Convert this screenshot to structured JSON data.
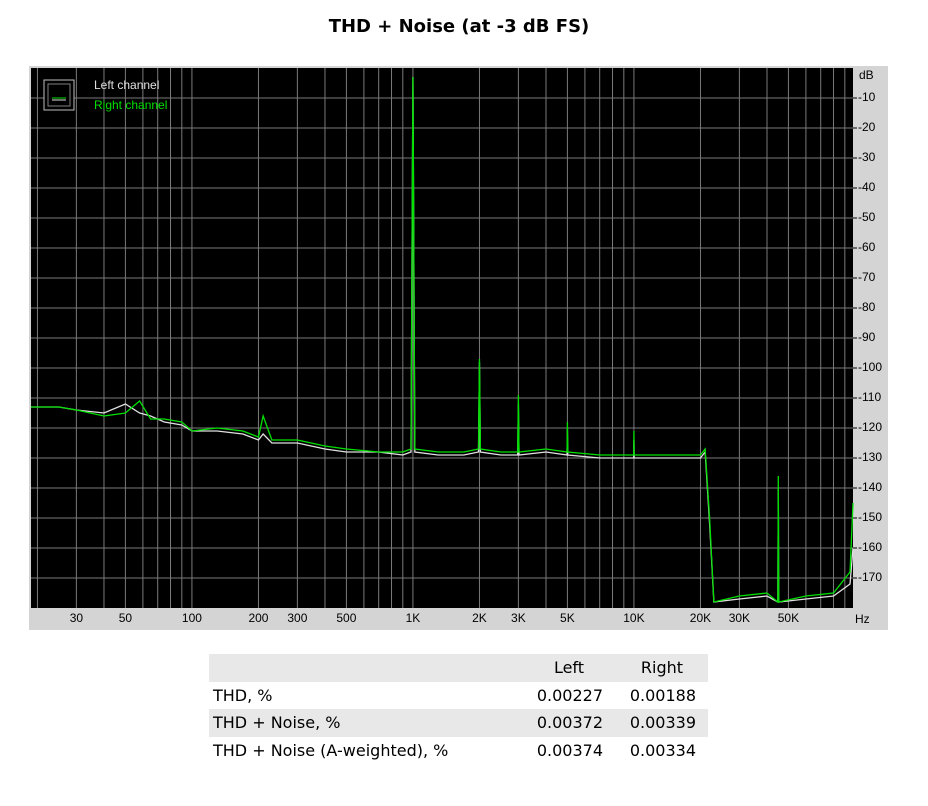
{
  "chart_data": {
    "type": "line",
    "title": "THD + Noise (at -3 dB FS)",
    "x_unit": "Hz",
    "y_unit": "dB",
    "xscale": "log",
    "grid": true,
    "legend": "top-left",
    "x": [
      18.7,
      25,
      30,
      40,
      50,
      58,
      65,
      75,
      90,
      100,
      130,
      170,
      200,
      210,
      230,
      300,
      400,
      500,
      700,
      900,
      980,
      1000,
      1020,
      1300,
      1700,
      1980,
      2000,
      2020,
      2500,
      2980,
      3000,
      3020,
      4000,
      4980,
      5000,
      5020,
      7000,
      9980,
      10000,
      10020,
      15000,
      20000,
      21000,
      22000,
      23000,
      30000,
      40000,
      44800,
      45000,
      45200,
      60000,
      80000,
      95000,
      98000
    ],
    "series": [
      {
        "name": "Left channel",
        "color": "#e0e0e0",
        "values": [
          -113,
          -113,
          -114,
          -115,
          -112,
          -115,
          -116,
          -118,
          -119,
          -121,
          -121,
          -122,
          -124,
          -122,
          -125,
          -125,
          -127,
          -128,
          -128,
          -129,
          -128,
          -3,
          -128,
          -129,
          -129,
          -128,
          -98,
          -128,
          -129,
          -129,
          -112,
          -129,
          -128,
          -129,
          -120,
          -129,
          -130,
          -130,
          -124,
          -130,
          -130,
          -130,
          -128,
          -152,
          -178,
          -177,
          -176,
          -178,
          -140,
          -178,
          -177,
          -176,
          -172,
          -160
        ]
      },
      {
        "name": "Right channel",
        "color": "#00e000",
        "values": [
          -113,
          -113,
          -114,
          -116,
          -115,
          -111,
          -117,
          -117,
          -118,
          -121,
          -120,
          -121,
          -123,
          -116,
          -124,
          -124,
          -126,
          -127,
          -128,
          -128,
          -127,
          -3,
          -127,
          -128,
          -128,
          -127,
          -97,
          -127,
          -128,
          -128,
          -109,
          -128,
          -127,
          -128,
          -118,
          -128,
          -129,
          -129,
          -121,
          -129,
          -129,
          -129,
          -127,
          -150,
          -178,
          -176,
          -175,
          -178,
          -136,
          -178,
          -176,
          -175,
          -168,
          -145
        ]
      }
    ],
    "xlim": [
      18.7,
      98000
    ],
    "ylim": [
      -180,
      0
    ],
    "xticks": [
      30,
      50,
      100,
      200,
      300,
      500,
      {
        "value": 1000,
        "label": "1K"
      },
      {
        "value": 2000,
        "label": "2K"
      },
      {
        "value": 3000,
        "label": "3K"
      },
      {
        "value": 5000,
        "label": "5K"
      },
      {
        "value": 10000,
        "label": "10K"
      },
      {
        "value": 20000,
        "label": "20K"
      },
      {
        "value": 30000,
        "label": "30K"
      },
      {
        "value": 50000,
        "label": "50K"
      }
    ],
    "xminorticks": [
      20,
      40,
      60,
      70,
      80,
      90,
      400,
      600,
      700,
      800,
      900,
      4000,
      6000,
      7000,
      8000,
      9000,
      40000,
      60000,
      70000,
      80000,
      90000
    ],
    "yticks": [
      -10,
      -20,
      -30,
      -40,
      -50,
      -60,
      -70,
      -80,
      -90,
      -100,
      -110,
      -120,
      -130,
      -140,
      -150,
      -160,
      -170
    ]
  },
  "table": {
    "columns": [
      "Left",
      "Right"
    ],
    "rows": [
      {
        "label": "THD, %",
        "values": [
          0.00227,
          0.00188
        ]
      },
      {
        "label": "THD + Noise, %",
        "values": [
          0.00372,
          0.00339
        ]
      },
      {
        "label": "THD + Noise (A-weighted), %",
        "values": [
          0.00374,
          0.00334
        ]
      }
    ]
  }
}
